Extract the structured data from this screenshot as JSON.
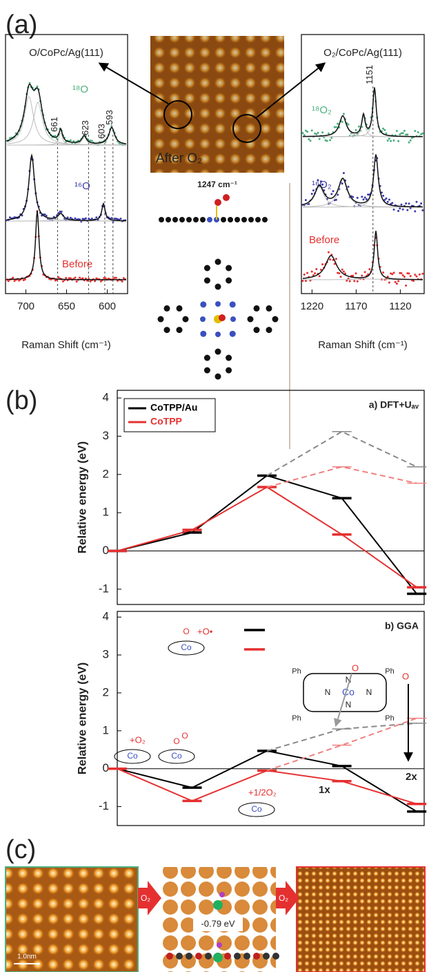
{
  "panel_labels": [
    "(a)",
    "(b)",
    "(c)"
  ],
  "raman": [
    {
      "title": "O/CoPc/Ag(111)",
      "xlabel": "Raman Shift (cm⁻¹)",
      "xlim": [
        725,
        575
      ],
      "xticks": [
        700,
        650,
        600
      ],
      "peaks": [
        661,
        623,
        603,
        593
      ],
      "traces": [
        {
          "label": "¹⁸O",
          "color": "#4caf7d"
        },
        {
          "label": "¹⁶O",
          "color": "#3a3aa8"
        },
        {
          "label": "Before",
          "color": "#e53030"
        }
      ]
    },
    {
      "title": "O₂/CoPc/Ag(111)",
      "xlabel": "Raman Shift (cm⁻¹)",
      "xlim": [
        1232,
        1093
      ],
      "xticks": [
        1220,
        1170,
        1120
      ],
      "peaks": [
        1151
      ],
      "traces": [
        {
          "label": "¹⁸O₂",
          "color": "#4caf7d"
        },
        {
          "label": "¹⁶O₂",
          "color": "#3a3aa8"
        },
        {
          "label": "Before",
          "color": "#e53030"
        }
      ]
    }
  ],
  "stm": {
    "label": "After O₂",
    "caption": "1247 cm⁻¹"
  },
  "chart_data": [
    {
      "type": "line",
      "title": "a) DFT+Uₐᵥ",
      "ylabel": "Relative energy (eV)",
      "x": [
        0,
        1,
        2,
        3,
        4
      ],
      "xlim": [
        0,
        4.1
      ],
      "ylim": [
        -1.4,
        4.2
      ],
      "yticks": [
        -1,
        0,
        1,
        2,
        3,
        4
      ],
      "legend": "top-left",
      "series": [
        {
          "name": "CoTPP/Au",
          "color": "#000000",
          "values": [
            0,
            0.48,
            1.97,
            1.38,
            -1.12
          ]
        },
        {
          "name": "CoTPP",
          "color": "#e53030",
          "values": [
            0,
            0.55,
            1.67,
            0.43,
            -0.95
          ]
        },
        {
          "color": "#888888",
          "dashed": true,
          "values": [
            null,
            null,
            1.97,
            3.12,
            2.2
          ]
        },
        {
          "color": "#f08080",
          "dashed": true,
          "values": [
            null,
            null,
            1.67,
            2.2,
            1.77
          ]
        }
      ]
    },
    {
      "type": "line",
      "title": "b) GGA",
      "ylabel": "Relative energy (eV)",
      "x": [
        0,
        1,
        2,
        3,
        4
      ],
      "xlim": [
        0,
        4.1
      ],
      "ylim": [
        -1.5,
        4.15
      ],
      "yticks": [
        -1,
        0,
        1,
        2,
        3,
        4
      ],
      "annotations": [
        "+O₂",
        "Co",
        "O",
        "+O•",
        "+1/2O₂",
        "1x",
        "2x",
        "Ph",
        "N"
      ],
      "series": [
        {
          "color": "#000000",
          "values": [
            0,
            -0.5,
            0.47,
            0.07,
            -1.13
          ]
        },
        {
          "color": "#e53030",
          "values": [
            0,
            -0.85,
            -0.05,
            -0.33,
            -0.93
          ]
        },
        {
          "color": "#888888",
          "dashed": true,
          "values": [
            null,
            null,
            0.47,
            1.05,
            1.2
          ]
        },
        {
          "color": "#f08080",
          "dashed": true,
          "values": [
            null,
            null,
            -0.05,
            0.62,
            1.33
          ]
        }
      ]
    }
  ],
  "panel_c": {
    "arrow_label": "O₂",
    "energy": "-0.79 eV",
    "scale_bar": "1.0nm"
  }
}
